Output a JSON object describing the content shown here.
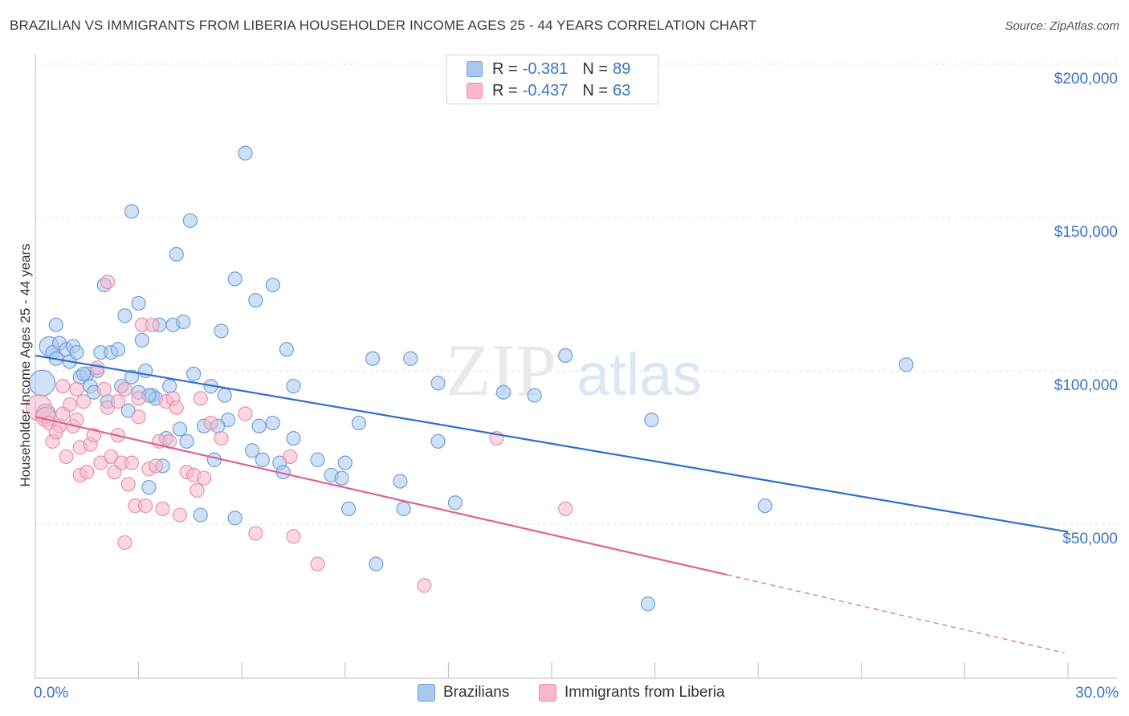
{
  "title": "BRAZILIAN VS IMMIGRANTS FROM LIBERIA HOUSEHOLDER INCOME AGES 25 - 44 YEARS CORRELATION CHART",
  "source": "Source: ZipAtlas.com",
  "watermark": {
    "zip": "ZIP",
    "atlas": "atlas"
  },
  "colors": {
    "blue_fill": "#a9c8f0",
    "blue_stroke": "#6f9fdc",
    "blue_line": "#2f6fcd",
    "pink_fill": "#f6b8ca",
    "pink_stroke": "#ec8fae",
    "pink_line": "#e0628f",
    "label": "#3d74c6",
    "grid": "#e3e3e3"
  },
  "legend": {
    "rows": [
      {
        "r_label": "R =",
        "r_value": "-0.381",
        "n_label": "N =",
        "n_value": "89",
        "series": "blue"
      },
      {
        "r_label": "R =",
        "r_value": "-0.437",
        "n_label": "N =",
        "n_value": "63",
        "series": "pink"
      }
    ]
  },
  "bottom_legend": [
    {
      "label": "Brazilians",
      "series": "blue"
    },
    {
      "label": "Immigrants from Liberia",
      "series": "pink"
    }
  ],
  "chart_data": {
    "type": "scatter",
    "xlabel": "",
    "ylabel": "Householder Income Ages 25 - 44 years",
    "xlim": [
      0,
      30
    ],
    "ylim": [
      0,
      210000
    ],
    "x_tick_labels": [
      {
        "value": 0,
        "label": "0.0%"
      },
      {
        "value": 30,
        "label": "30.0%"
      }
    ],
    "y_tick_labels": [
      {
        "value": 50000,
        "label": "$50,000"
      },
      {
        "value": 100000,
        "label": "$100,000"
      },
      {
        "value": 150000,
        "label": "$150,000"
      },
      {
        "value": 200000,
        "label": "$200,000"
      }
    ],
    "x_minor_ticks": [
      0,
      3,
      6,
      9,
      12,
      15,
      18,
      21,
      24,
      27,
      30
    ],
    "grid": true,
    "legend_position": "top-center",
    "series": [
      {
        "name": "Brazilians",
        "color": "blue",
        "trend": {
          "x0": 0,
          "y0": 105000,
          "x1": 30,
          "y1": 47500
        },
        "points": [
          [
            0.2,
            96000,
            3
          ],
          [
            0.4,
            108000,
            2
          ],
          [
            0.5,
            106000,
            1
          ],
          [
            0.6,
            104000,
            1
          ],
          [
            0.7,
            109000,
            1
          ],
          [
            0.6,
            115000,
            1
          ],
          [
            0.9,
            107000,
            1
          ],
          [
            1.0,
            103000,
            1
          ],
          [
            1.1,
            108000,
            1
          ],
          [
            1.2,
            106000,
            1
          ],
          [
            1.3,
            98000,
            1
          ],
          [
            1.5,
            99000,
            1
          ],
          [
            1.6,
            95000,
            1
          ],
          [
            1.7,
            93000,
            1
          ],
          [
            1.8,
            100000,
            1
          ],
          [
            1.9,
            106000,
            1
          ],
          [
            2.0,
            128000,
            1
          ],
          [
            2.1,
            90000,
            1
          ],
          [
            2.2,
            106000,
            1
          ],
          [
            2.4,
            107000,
            1
          ],
          [
            2.5,
            95000,
            1
          ],
          [
            2.6,
            118000,
            1
          ],
          [
            2.7,
            87000,
            1
          ],
          [
            2.8,
            98000,
            1
          ],
          [
            2.8,
            152000,
            1
          ],
          [
            3.0,
            93000,
            1
          ],
          [
            3.0,
            122000,
            1
          ],
          [
            3.1,
            110000,
            1
          ],
          [
            3.2,
            100000,
            1
          ],
          [
            3.3,
            62000,
            1
          ],
          [
            3.4,
            92000,
            1
          ],
          [
            3.5,
            91000,
            1
          ],
          [
            3.6,
            115000,
            1
          ],
          [
            3.7,
            69000,
            1
          ],
          [
            3.8,
            78000,
            1
          ],
          [
            3.9,
            95000,
            1
          ],
          [
            4.0,
            115000,
            1
          ],
          [
            4.1,
            138000,
            1
          ],
          [
            4.2,
            81000,
            1
          ],
          [
            4.3,
            116000,
            1
          ],
          [
            4.4,
            77000,
            1
          ],
          [
            4.5,
            149000,
            1
          ],
          [
            4.6,
            99000,
            1
          ],
          [
            4.8,
            53000,
            1
          ],
          [
            4.9,
            82000,
            1
          ],
          [
            5.1,
            95000,
            1
          ],
          [
            5.2,
            71000,
            1
          ],
          [
            5.4,
            113000,
            1
          ],
          [
            5.5,
            92000,
            1
          ],
          [
            5.6,
            84000,
            1
          ],
          [
            5.8,
            52000,
            1
          ],
          [
            5.8,
            130000,
            1
          ],
          [
            6.1,
            171000,
            1
          ],
          [
            6.3,
            74000,
            1
          ],
          [
            6.4,
            123000,
            1
          ],
          [
            6.5,
            82000,
            1
          ],
          [
            6.6,
            71000,
            1
          ],
          [
            6.9,
            128000,
            1
          ],
          [
            7.1,
            70000,
            1
          ],
          [
            7.2,
            67000,
            1
          ],
          [
            7.3,
            107000,
            1
          ],
          [
            7.5,
            78000,
            1
          ],
          [
            7.5,
            95000,
            1
          ],
          [
            8.2,
            71000,
            1
          ],
          [
            8.6,
            66000,
            1
          ],
          [
            8.9,
            65000,
            1
          ],
          [
            9.0,
            70000,
            1
          ],
          [
            9.1,
            55000,
            1
          ],
          [
            9.4,
            83000,
            1
          ],
          [
            9.8,
            104000,
            1
          ],
          [
            9.9,
            37000,
            1
          ],
          [
            10.6,
            64000,
            1
          ],
          [
            10.7,
            55000,
            1
          ],
          [
            10.9,
            104000,
            1
          ],
          [
            11.7,
            96000,
            1
          ],
          [
            11.7,
            77000,
            1
          ],
          [
            12.2,
            57000,
            1
          ],
          [
            13.6,
            93000,
            1
          ],
          [
            14.5,
            92000,
            1
          ],
          [
            15.4,
            105000,
            1
          ],
          [
            17.8,
            24000,
            1
          ],
          [
            17.9,
            84000,
            1
          ],
          [
            21.2,
            56000,
            1
          ],
          [
            25.3,
            102000,
            1
          ],
          [
            0.3,
            86000,
            2
          ],
          [
            1.4,
            99000,
            1
          ],
          [
            3.3,
            92000,
            1
          ],
          [
            5.3,
            82000,
            1
          ],
          [
            6.9,
            83000,
            1
          ]
        ]
      },
      {
        "name": "Immigrants from Liberia",
        "color": "pink",
        "trend": {
          "x0": 0,
          "y0": 85000,
          "x1": 20.1,
          "y1": 33500,
          "dash_x1": 29.9,
          "dash_y1": 8000
        },
        "points": [
          [
            0.1,
            88000,
            3
          ],
          [
            0.3,
            85000,
            2
          ],
          [
            0.4,
            83000,
            1
          ],
          [
            0.5,
            77000,
            1
          ],
          [
            0.7,
            82000,
            1
          ],
          [
            0.8,
            95000,
            1
          ],
          [
            0.8,
            86000,
            1
          ],
          [
            0.9,
            72000,
            1
          ],
          [
            1.0,
            89000,
            1
          ],
          [
            1.1,
            82000,
            1
          ],
          [
            1.2,
            94000,
            1
          ],
          [
            1.3,
            75000,
            1
          ],
          [
            1.3,
            66000,
            1
          ],
          [
            1.4,
            90000,
            1
          ],
          [
            1.5,
            67000,
            1
          ],
          [
            1.6,
            76000,
            1
          ],
          [
            1.7,
            79000,
            1
          ],
          [
            1.8,
            101000,
            1
          ],
          [
            1.9,
            70000,
            1
          ],
          [
            2.0,
            94000,
            1
          ],
          [
            2.1,
            88000,
            1
          ],
          [
            2.2,
            72000,
            1
          ],
          [
            2.3,
            67000,
            1
          ],
          [
            2.4,
            79000,
            1
          ],
          [
            2.5,
            70000,
            1
          ],
          [
            2.6,
            94000,
            1
          ],
          [
            2.6,
            44000,
            1
          ],
          [
            2.7,
            63000,
            1
          ],
          [
            2.8,
            70000,
            1
          ],
          [
            2.9,
            56000,
            1
          ],
          [
            3.0,
            85000,
            1
          ],
          [
            3.1,
            115000,
            1
          ],
          [
            3.2,
            56000,
            1
          ],
          [
            3.3,
            68000,
            1
          ],
          [
            3.4,
            115000,
            1
          ],
          [
            3.5,
            69000,
            1
          ],
          [
            3.6,
            77000,
            1
          ],
          [
            3.7,
            55000,
            1
          ],
          [
            3.8,
            90000,
            1
          ],
          [
            3.9,
            77000,
            1
          ],
          [
            4.0,
            91000,
            1
          ],
          [
            4.1,
            88000,
            1
          ],
          [
            4.2,
            53000,
            1
          ],
          [
            4.4,
            67000,
            1
          ],
          [
            4.6,
            66000,
            1
          ],
          [
            4.8,
            91000,
            1
          ],
          [
            4.9,
            65000,
            1
          ],
          [
            5.1,
            83000,
            1
          ],
          [
            5.4,
            78000,
            1
          ],
          [
            6.1,
            86000,
            1
          ],
          [
            6.4,
            47000,
            1
          ],
          [
            7.4,
            72000,
            1
          ],
          [
            7.5,
            46000,
            1
          ],
          [
            8.2,
            37000,
            1
          ],
          [
            11.3,
            30000,
            1
          ],
          [
            13.4,
            78000,
            1
          ],
          [
            15.4,
            55000,
            1
          ],
          [
            2.1,
            129000,
            1
          ],
          [
            3.0,
            91000,
            1
          ],
          [
            1.2,
            84000,
            1
          ],
          [
            0.6,
            80000,
            1
          ],
          [
            2.4,
            90000,
            1
          ],
          [
            4.7,
            61000,
            1
          ]
        ]
      }
    ]
  }
}
